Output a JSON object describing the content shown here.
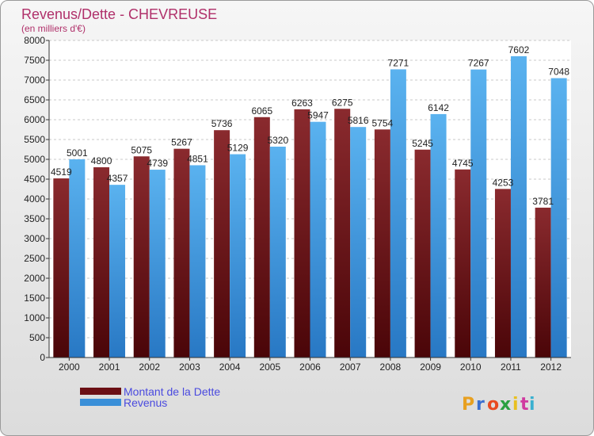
{
  "chart_data": {
    "type": "bar",
    "title": "Revenus/Dette - CHEVREUSE",
    "subtitle": "(en milliers d'€)",
    "categories": [
      "2000",
      "2001",
      "2002",
      "2003",
      "2004",
      "2005",
      "2006",
      "2007",
      "2008",
      "2009",
      "2010",
      "2011",
      "2012"
    ],
    "series": [
      {
        "name": "Montant de la Dette",
        "color": "#6b0f14",
        "values": [
          4519,
          4800,
          5075,
          5267,
          5736,
          6065,
          6263,
          6275,
          5754,
          5245,
          4745,
          4253,
          3781
        ]
      },
      {
        "name": "Revenus",
        "color": "#3a8fd8",
        "values": [
          5001,
          4357,
          4739,
          4851,
          5129,
          5320,
          5947,
          5816,
          7271,
          6142,
          7267,
          7602,
          7048
        ]
      }
    ],
    "ylim": [
      0,
      8000
    ],
    "ytick_step": 500,
    "grid": true,
    "legend_position": "bottom-left"
  },
  "brand": {
    "letters": [
      "P",
      "r",
      "o",
      "x",
      "i",
      "t",
      "i"
    ],
    "colors": [
      "#e8a020",
      "#3a6fd0",
      "#e84a20",
      "#2aa040",
      "#e8c020",
      "#d03aa0",
      "#3ab0d0"
    ]
  }
}
